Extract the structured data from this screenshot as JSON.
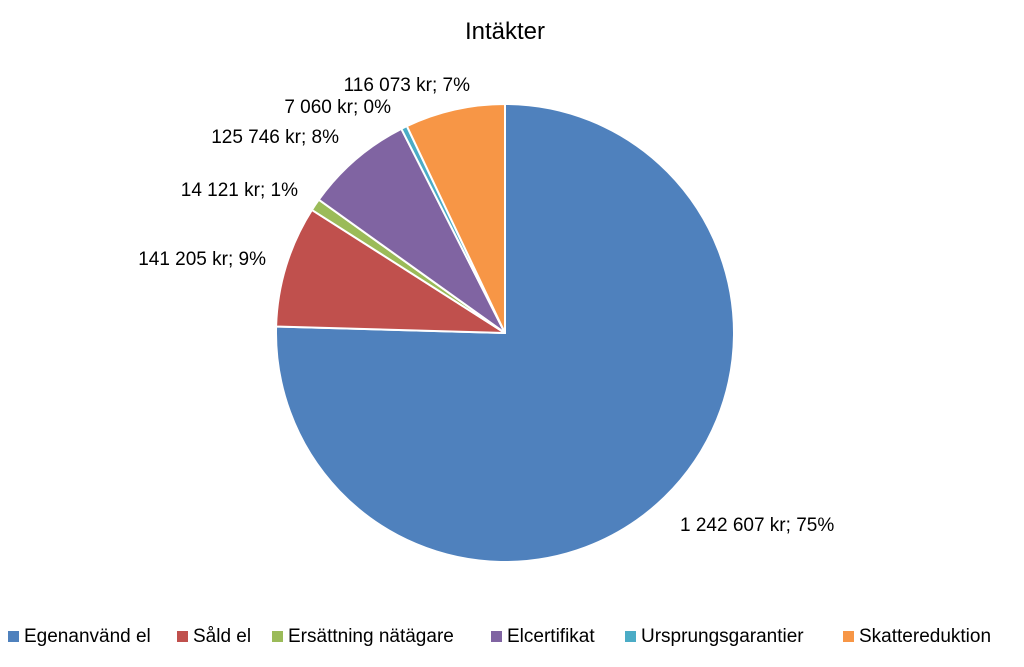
{
  "chart_data": {
    "type": "pie",
    "title": "Intäkter",
    "categories": [
      "Egenanvänd el",
      "Såld el",
      "Ersättning nätägare",
      "Elcertifikat",
      "Ursprungsgarantier",
      "Skattereduktion"
    ],
    "values": [
      1242607,
      141205,
      14121,
      125746,
      7060,
      116073
    ],
    "data_labels": [
      "1 242 607 kr; 75%",
      "141 205 kr; 9%",
      "14 121 kr; 1%",
      "125 746 kr; 8%",
      "7 060 kr; 0%",
      "116 073 kr; 7%"
    ],
    "colors": [
      "#4F81BD",
      "#C0504D",
      "#9BBB59",
      "#8064A2",
      "#4BACC6",
      "#F79646"
    ],
    "start_angle": "12 o'clock",
    "direction": "clockwise",
    "legend_position": "bottom"
  }
}
